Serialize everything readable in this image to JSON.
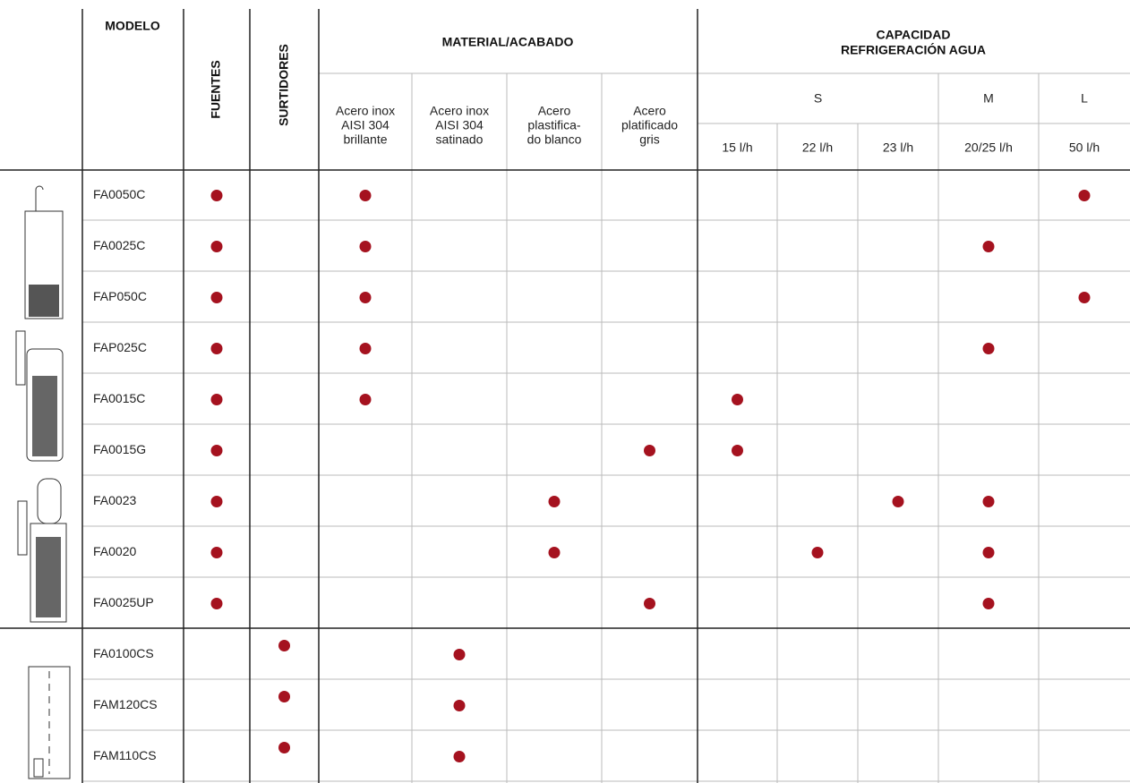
{
  "header": {
    "modelo": "MODELO",
    "fuentes": "FUENTES",
    "surtidores": "SURTIDORES",
    "material": "MATERIAL/ACABADO",
    "materials": [
      [
        "Acero inox",
        "AISI 304",
        "brillante"
      ],
      [
        "Acero inox",
        "AISI 304",
        "satinado"
      ],
      [
        "Acero",
        "plastifica-",
        "do blanco"
      ],
      [
        "Acero",
        "platificado",
        "gris"
      ]
    ],
    "capacidad": [
      "CAPACIDAD",
      "REFRIGERACIÓN AGUA"
    ],
    "sizes": [
      "S",
      "M",
      "L"
    ],
    "flows": [
      "15 l/h",
      "22 l/h",
      "23 l/h",
      "20/25 l/h",
      "50 l/h"
    ]
  },
  "rows": [
    {
      "model": "FA0050C",
      "marks": [
        true,
        false,
        true,
        false,
        false,
        false,
        false,
        false,
        false,
        false,
        true
      ]
    },
    {
      "model": "FA0025C",
      "marks": [
        true,
        false,
        true,
        false,
        false,
        false,
        false,
        false,
        false,
        true,
        false
      ]
    },
    {
      "model": "FAP050C",
      "marks": [
        true,
        false,
        true,
        false,
        false,
        false,
        false,
        false,
        false,
        false,
        true
      ]
    },
    {
      "model": "FAP025C",
      "marks": [
        true,
        false,
        true,
        false,
        false,
        false,
        false,
        false,
        false,
        true,
        false
      ]
    },
    {
      "model": "FA0015C",
      "marks": [
        true,
        false,
        true,
        false,
        false,
        false,
        true,
        false,
        false,
        false,
        false
      ]
    },
    {
      "model": "FA0015G",
      "marks": [
        true,
        false,
        false,
        false,
        false,
        true,
        true,
        false,
        false,
        false,
        false
      ]
    },
    {
      "model": "FA0023",
      "marks": [
        true,
        false,
        false,
        false,
        true,
        false,
        false,
        false,
        true,
        true,
        false
      ]
    },
    {
      "model": "FA0020",
      "marks": [
        true,
        false,
        false,
        false,
        true,
        false,
        false,
        true,
        false,
        true,
        false
      ]
    },
    {
      "model": "FA0025UP",
      "marks": [
        true,
        false,
        false,
        false,
        false,
        true,
        false,
        false,
        false,
        true,
        false
      ]
    },
    {
      "model": "FA0100CS",
      "marks": [
        false,
        true,
        false,
        true,
        false,
        false,
        false,
        false,
        false,
        false,
        false
      ]
    },
    {
      "model": "FAM120CS",
      "marks": [
        false,
        true,
        false,
        true,
        false,
        false,
        false,
        false,
        false,
        false,
        false
      ]
    },
    {
      "model": "FAM110CS",
      "marks": [
        false,
        true,
        false,
        true,
        false,
        false,
        false,
        false,
        false,
        false,
        false
      ]
    }
  ]
}
